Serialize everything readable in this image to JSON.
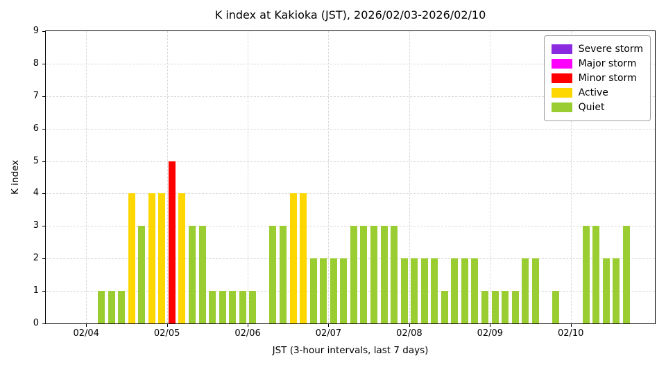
{
  "chart_data": {
    "type": "bar",
    "title": "K index at Kakioka (JST), 2026/02/03-2026/02/10",
    "xlabel": "JST (3-hour intervals, last 7 days)",
    "ylabel": "K index",
    "ylim": [
      0,
      9
    ],
    "yticks": [
      0,
      1,
      2,
      3,
      4,
      5,
      6,
      7,
      8,
      9
    ],
    "xticks": [
      "02/04",
      "02/05",
      "02/06",
      "02/07",
      "02/08",
      "02/09",
      "02/10"
    ],
    "x_min": "02/03 12:00",
    "x_max": "02/11 01:00",
    "interval_hours": 3,
    "grid": true,
    "legend_position": "upper right",
    "colors": {
      "severe": "#8A2BE2",
      "major": "#FF00FF",
      "minor": "#FF0000",
      "active": "#FFD700",
      "quiet": "#9ACD32",
      "grid": "#d9d9d9",
      "axis": "#000000",
      "background": "#ffffff"
    },
    "legend": [
      {
        "label": "Severe storm",
        "color_key": "severe"
      },
      {
        "label": "Major storm",
        "color_key": "major"
      },
      {
        "label": "Minor storm",
        "color_key": "minor"
      },
      {
        "label": "Active",
        "color_key": "active"
      },
      {
        "label": "Quiet",
        "color_key": "quiet"
      }
    ],
    "k_color_rules": {
      "0-3": "quiet",
      "4": "active",
      "5": "minor",
      "6-7": "major",
      "8-9": "severe"
    },
    "series": [
      [
        "02/03 18:00",
        0
      ],
      [
        "02/03 21:00",
        0
      ],
      [
        "02/04 00:00",
        0
      ],
      [
        "02/04 03:00",
        1
      ],
      [
        "02/04 06:00",
        1
      ],
      [
        "02/04 09:00",
        1
      ],
      [
        "02/04 12:00",
        4
      ],
      [
        "02/04 15:00",
        3
      ],
      [
        "02/04 18:00",
        4
      ],
      [
        "02/04 21:00",
        4
      ],
      [
        "02/05 00:00",
        5
      ],
      [
        "02/05 03:00",
        4
      ],
      [
        "02/05 06:00",
        3
      ],
      [
        "02/05 09:00",
        3
      ],
      [
        "02/05 12:00",
        1
      ],
      [
        "02/05 15:00",
        1
      ],
      [
        "02/05 18:00",
        1
      ],
      [
        "02/05 21:00",
        1
      ],
      [
        "02/06 00:00",
        1
      ],
      [
        "02/06 03:00",
        0
      ],
      [
        "02/06 06:00",
        3
      ],
      [
        "02/06 09:00",
        3
      ],
      [
        "02/06 12:00",
        4
      ],
      [
        "02/06 15:00",
        4
      ],
      [
        "02/06 18:00",
        2
      ],
      [
        "02/06 21:00",
        2
      ],
      [
        "02/07 00:00",
        2
      ],
      [
        "02/07 03:00",
        2
      ],
      [
        "02/07 06:00",
        3
      ],
      [
        "02/07 09:00",
        3
      ],
      [
        "02/07 12:00",
        3
      ],
      [
        "02/07 15:00",
        3
      ],
      [
        "02/07 18:00",
        3
      ],
      [
        "02/07 21:00",
        2
      ],
      [
        "02/08 00:00",
        2
      ],
      [
        "02/08 03:00",
        2
      ],
      [
        "02/08 06:00",
        2
      ],
      [
        "02/08 09:00",
        1
      ],
      [
        "02/08 12:00",
        2
      ],
      [
        "02/08 15:00",
        2
      ],
      [
        "02/08 18:00",
        2
      ],
      [
        "02/08 21:00",
        1
      ],
      [
        "02/09 00:00",
        1
      ],
      [
        "02/09 03:00",
        1
      ],
      [
        "02/09 06:00",
        1
      ],
      [
        "02/09 09:00",
        2
      ],
      [
        "02/09 12:00",
        2
      ],
      [
        "02/09 15:00",
        0
      ],
      [
        "02/09 18:00",
        1
      ],
      [
        "02/09 21:00",
        0
      ],
      [
        "02/10 00:00",
        0
      ],
      [
        "02/10 03:00",
        3
      ],
      [
        "02/10 06:00",
        3
      ],
      [
        "02/10 09:00",
        2
      ],
      [
        "02/10 12:00",
        2
      ],
      [
        "02/10 15:00",
        3
      ]
    ]
  }
}
